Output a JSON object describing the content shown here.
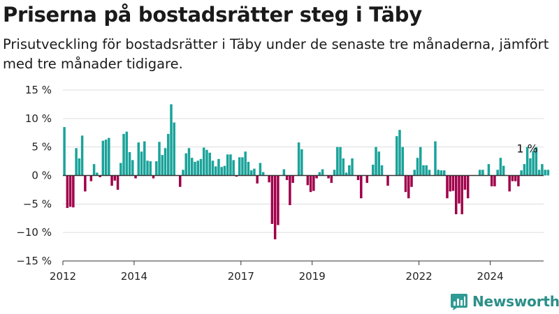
{
  "header": {
    "title": "Priserna på bostadsrätter steg i Täby",
    "subtitle": "Prisutveckling för bostadsrätter i Täby under de senaste tre månaderna, jämfört med tre månader tidigare."
  },
  "brand": {
    "name": "Newsworthy",
    "logo_icon": "bar-chart-logo-icon",
    "color": "#2e9a93"
  },
  "colors": {
    "positive": "#1aa39a",
    "negative": "#a0004a",
    "grid": "#dddddd",
    "zero_line": "#333333"
  },
  "chart_data": {
    "type": "bar",
    "title": "Priserna på bostadsrätter steg i Täby",
    "subtitle": "Prisutveckling för bostadsrätter i Täby under de senaste tre månaderna, jämfört med tre månader tidigare.",
    "xlabel": "",
    "ylabel": "",
    "ylim": [
      -15,
      15
    ],
    "yticks": [
      -15,
      -10,
      -5,
      0,
      5,
      10,
      15
    ],
    "ytick_labels": [
      "−15 %",
      "−10 %",
      "−5 %",
      "0 %",
      "5 %",
      "10 %",
      "15 %"
    ],
    "xlim": [
      2012.0,
      2025.5
    ],
    "xticks": [
      2012,
      2014,
      2017,
      2019,
      2022,
      2024
    ],
    "xtick_labels": [
      "2012",
      "2014",
      "2017",
      "2019",
      "2022",
      "2024"
    ],
    "grid": "horizontal",
    "annotations": [
      {
        "text": "1 %",
        "x": 2025.08,
        "y": 1
      }
    ],
    "x_start": 2012.0,
    "period": "month",
    "values": [
      8.5,
      -5.7,
      -5.5,
      -5.6,
      4.8,
      3.0,
      7.0,
      -2.8,
      0.0,
      -1.0,
      2.0,
      0.5,
      -0.3,
      6.1,
      6.3,
      6.6,
      -1.8,
      -0.9,
      -2.5,
      2.2,
      7.3,
      7.7,
      4.1,
      2.7,
      -0.5,
      5.8,
      4.2,
      6.0,
      2.6,
      2.5,
      -0.5,
      2.5,
      5.9,
      3.6,
      4.8,
      7.3,
      12.5,
      9.3,
      0.0,
      -2.0,
      1.0,
      3.9,
      4.8,
      3.1,
      2.4,
      2.6,
      2.9,
      4.9,
      4.5,
      4.0,
      2.6,
      1.6,
      2.9,
      1.5,
      1.7,
      3.7,
      3.7,
      2.7,
      -0.2,
      3.2,
      3.2,
      4.2,
      2.4,
      0.9,
      1.2,
      -1.4,
      2.2,
      0.6,
      0.0,
      -1.2,
      -8.5,
      -11.2,
      -8.7,
      0.0,
      1.1,
      -0.8,
      -5.2,
      -1.3,
      0.0,
      5.8,
      4.6,
      0.0,
      -1.7,
      -2.9,
      -2.7,
      -0.5,
      0.6,
      1.1,
      0.0,
      -0.5,
      -1.3,
      1.0,
      5.0,
      5.0,
      3.0,
      0.5,
      1.8,
      3.0,
      0.0,
      -0.8,
      -4.0,
      0.0,
      -1.3,
      0.0,
      1.9,
      5.0,
      4.2,
      1.8,
      0.0,
      -1.8,
      0.0,
      0.0,
      6.9,
      8.0,
      5.0,
      -2.9,
      -4.0,
      -2.0,
      1.0,
      3.1,
      5.0,
      1.8,
      1.8,
      1.0,
      0.0,
      6.0,
      1.0,
      0.9,
      0.9,
      -4.0,
      -2.8,
      -2.7,
      -6.8,
      -4.9,
      -6.8,
      -2.5,
      -4.0,
      0.0,
      0.0,
      0.0,
      1.0,
      1.0,
      0.0,
      2.0,
      -1.9,
      -1.9,
      1.0,
      3.1,
      1.7,
      0.0,
      -2.8,
      -1.0,
      -1.0,
      -1.9,
      0.9,
      2.0,
      5.0,
      3.0,
      4.3,
      5.0,
      1.0,
      2.0,
      1.0,
      1.0
    ]
  }
}
